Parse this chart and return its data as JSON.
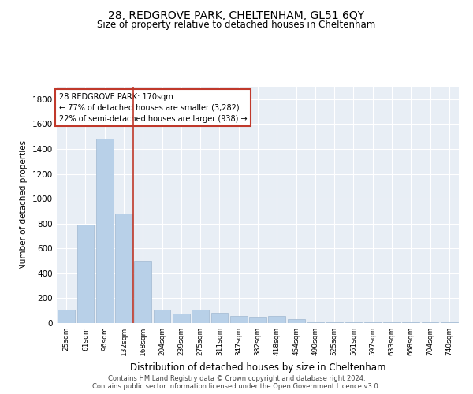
{
  "title1": "28, REDGROVE PARK, CHELTENHAM, GL51 6QY",
  "title2": "Size of property relative to detached houses in Cheltenham",
  "xlabel": "Distribution of detached houses by size in Cheltenham",
  "ylabel": "Number of detached properties",
  "footer1": "Contains HM Land Registry data © Crown copyright and database right 2024.",
  "footer2": "Contains public sector information licensed under the Open Government Licence v3.0.",
  "annotation_title": "28 REDGROVE PARK: 170sqm",
  "annotation_line1": "← 77% of detached houses are smaller (3,282)",
  "annotation_line2": "22% of semi-detached houses are larger (938) →",
  "bar_color": "#b8d0e8",
  "bar_edge_color": "#a0b8d0",
  "vline_color": "#c0392b",
  "annotation_box_edgecolor": "#c0392b",
  "background_color": "#e8eef5",
  "grid_color": "#ffffff",
  "categories": [
    "25sqm",
    "61sqm",
    "96sqm",
    "132sqm",
    "168sqm",
    "204sqm",
    "239sqm",
    "275sqm",
    "311sqm",
    "347sqm",
    "382sqm",
    "418sqm",
    "454sqm",
    "490sqm",
    "525sqm",
    "561sqm",
    "597sqm",
    "633sqm",
    "668sqm",
    "704sqm",
    "740sqm"
  ],
  "values": [
    110,
    790,
    1480,
    880,
    500,
    105,
    75,
    110,
    80,
    55,
    48,
    55,
    30,
    5,
    5,
    5,
    5,
    5,
    5,
    5,
    5
  ],
  "ylim": [
    0,
    1900
  ],
  "yticks": [
    0,
    200,
    400,
    600,
    800,
    1000,
    1200,
    1400,
    1600,
    1800
  ],
  "vline_x": 3.5,
  "figsize": [
    6.0,
    5.0
  ],
  "dpi": 100
}
